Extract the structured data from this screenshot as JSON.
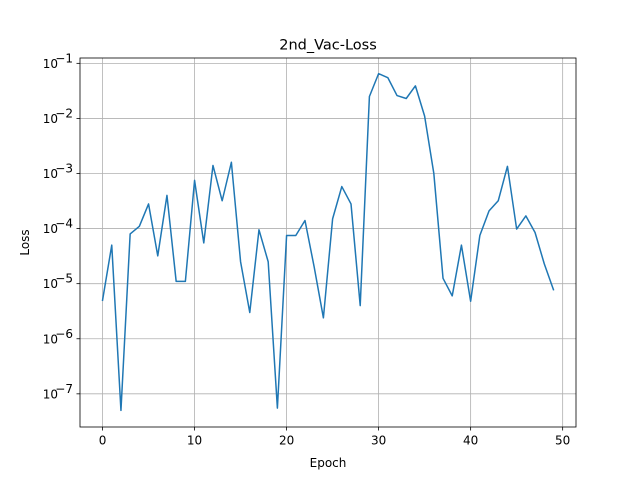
{
  "chart_data": {
    "type": "line",
    "title": "2nd_Vac-Loss",
    "xlabel": "Epoch",
    "ylabel": "Loss",
    "yscale": "log",
    "xlim": [
      -2.45,
      51.45
    ],
    "ylim": [
      2.5e-08,
      0.125
    ],
    "xticks": [
      0,
      10,
      20,
      30,
      40,
      50
    ],
    "yticks": [
      {
        "exp": "-7",
        "value": 1e-07
      },
      {
        "exp": "-6",
        "value": 1e-06
      },
      {
        "exp": "-5",
        "value": 1e-05
      },
      {
        "exp": "-4",
        "value": 0.0001
      },
      {
        "exp": "-3",
        "value": 0.001
      },
      {
        "exp": "-2",
        "value": 0.01
      },
      {
        "exp": "-1",
        "value": 0.1
      }
    ],
    "ytick_base": "10",
    "grid": true,
    "line_color": "#1f77b4",
    "x": [
      0,
      1,
      2,
      3,
      4,
      5,
      6,
      7,
      8,
      9,
      10,
      11,
      12,
      13,
      14,
      15,
      16,
      17,
      18,
      19,
      20,
      21,
      22,
      23,
      24,
      25,
      26,
      27,
      28,
      29,
      30,
      31,
      32,
      33,
      34,
      35,
      36,
      37,
      38,
      39,
      40,
      41,
      42,
      43,
      44,
      45,
      46,
      47,
      48,
      49
    ],
    "values": [
      5e-06,
      5e-05,
      5e-08,
      8e-05,
      0.00011,
      0.00028,
      3.2e-05,
      0.0004,
      1.1e-05,
      1.1e-05,
      0.00075,
      5.5e-05,
      0.0014,
      0.00032,
      0.0016,
      2.5e-05,
      3e-06,
      9.5e-05,
      2.5e-05,
      5.5e-08,
      7.5e-05,
      7.5e-05,
      0.00014,
      2e-05,
      2.4e-06,
      0.00015,
      0.00058,
      0.00028,
      4e-06,
      0.025,
      0.065,
      0.055,
      0.026,
      0.023,
      0.039,
      0.011,
      0.001,
      1.25e-05,
      6e-06,
      5e-05,
      4.8e-06,
      7.5e-05,
      0.00021,
      0.00032,
      0.00135,
      9.8e-05,
      0.00017,
      8.5e-05,
      2.3e-05,
      7.8e-06
    ]
  }
}
